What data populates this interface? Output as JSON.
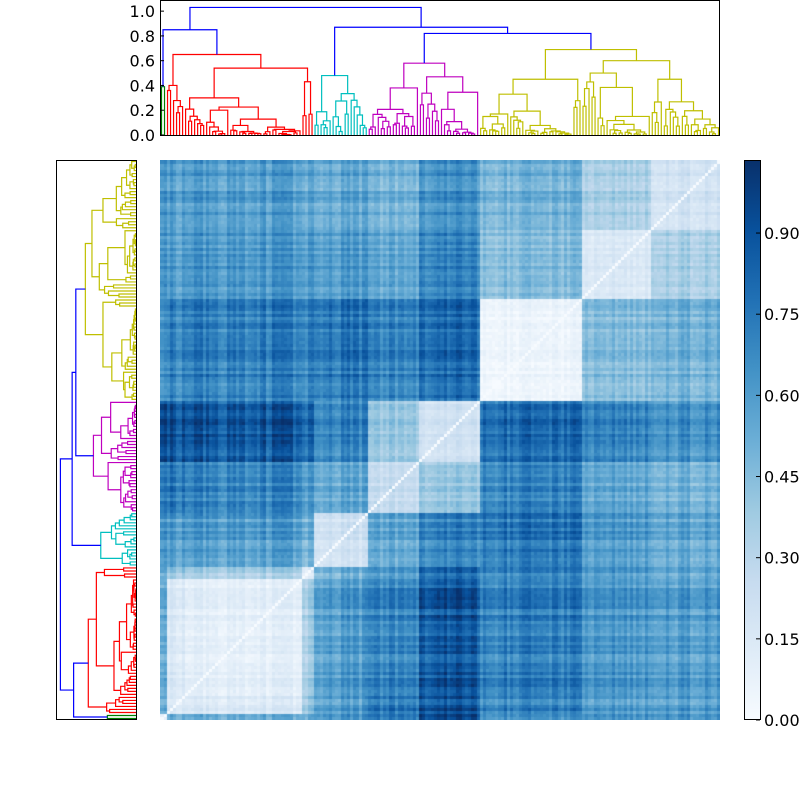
{
  "chart_data": {
    "type": "heatmap",
    "description_kind": "clustered distance matrix with row and column dendrograms",
    "colormap": "Blues",
    "value_range": [
      0.0,
      1.035
    ],
    "colorbar_ticks": [
      "0.00",
      "0.15",
      "0.30",
      "0.45",
      "0.60",
      "0.75",
      "0.90"
    ],
    "dendrogram_axis_ticks": [
      "0.0",
      "0.2",
      "0.4",
      "0.6",
      "0.8",
      "1.0"
    ],
    "dendrogram_axis_range": [
      0.0,
      1.09
    ],
    "colors": {
      "above_threshold": "#0000ff",
      "green": "#008000",
      "red": "#ff0000",
      "cyan": "#00bfbf",
      "magenta": "#bf00bf",
      "yellow": "#bfbf00"
    },
    "cluster_order": [
      "G",
      "Ra",
      "Rb",
      "Rc",
      "C",
      "M1",
      "M2",
      "Y1",
      "Y2",
      "Y3"
    ],
    "tree": {
      "height": 1.03,
      "color": "#0000ff",
      "children": [
        {
          "height": 0.85,
          "color": "#0000ff",
          "children": [
            {
              "cluster": 0,
              "size": 2,
              "height": 0.39,
              "color": "#008000"
            },
            {
              "height": 0.65,
              "color": "#ff0000",
              "children": [
                {
                  "cluster": 1,
                  "size": 6,
                  "height": 0.4,
                  "color": "#ff0000"
                },
                {
                  "height": 0.54,
                  "color": "#ff0000",
                  "children": [
                    {
                      "cluster": 2,
                      "size": 39,
                      "height": 0.3,
                      "color": "#ff0000"
                    },
                    {
                      "cluster": 3,
                      "size": 4,
                      "height": 0.43,
                      "color": "#ff0000"
                    }
                  ]
                }
              ]
            }
          ]
        },
        {
          "height": 0.87,
          "color": "#0000ff",
          "children": [
            {
              "cluster": 4,
              "size": 18,
              "height": 0.48,
              "color": "#00bfbf"
            },
            {
              "height": 0.82,
              "color": "#0000ff",
              "children": [
                {
                  "height": 0.58,
                  "color": "#bf00bf",
                  "children": [
                    {
                      "cluster": 5,
                      "size": 17,
                      "height": 0.38,
                      "color": "#bf00bf"
                    },
                    {
                      "cluster": 6,
                      "size": 20,
                      "height": 0.47,
                      "color": "#bf00bf"
                    }
                  ]
                },
                {
                  "height": 0.69,
                  "color": "#bfbf00",
                  "children": [
                    {
                      "cluster": 7,
                      "size": 34,
                      "height": 0.45,
                      "color": "#bfbf00"
                    },
                    {
                      "height": 0.6,
                      "color": "#bfbf00",
                      "children": [
                        {
                          "cluster": 8,
                          "size": 23,
                          "height": 0.5,
                          "color": "#bfbf00"
                        },
                        {
                          "cluster": 9,
                          "size": 23,
                          "height": 0.45,
                          "color": "#bfbf00"
                        }
                      ]
                    }
                  ]
                }
              ]
            }
          ]
        }
      ]
    },
    "block_mean_distance": [
      [
        0.05,
        0.5,
        0.5,
        0.5,
        0.6,
        0.7,
        0.9,
        0.6,
        0.6,
        0.6
      ],
      [
        0.5,
        0.15,
        0.15,
        0.4,
        0.6,
        0.75,
        0.9,
        0.7,
        0.6,
        0.6
      ],
      [
        0.5,
        0.15,
        0.1,
        0.35,
        0.6,
        0.7,
        0.88,
        0.72,
        0.62,
        0.6
      ],
      [
        0.5,
        0.4,
        0.35,
        0.1,
        0.5,
        0.6,
        0.8,
        0.7,
        0.6,
        0.55
      ],
      [
        0.6,
        0.6,
        0.6,
        0.5,
        0.2,
        0.55,
        0.7,
        0.75,
        0.6,
        0.55
      ],
      [
        0.7,
        0.75,
        0.7,
        0.6,
        0.55,
        0.25,
        0.4,
        0.7,
        0.55,
        0.5
      ],
      [
        0.9,
        0.9,
        0.88,
        0.8,
        0.7,
        0.4,
        0.2,
        0.8,
        0.7,
        0.65
      ],
      [
        0.6,
        0.7,
        0.72,
        0.7,
        0.75,
        0.7,
        0.8,
        0.05,
        0.45,
        0.5
      ],
      [
        0.6,
        0.6,
        0.62,
        0.6,
        0.6,
        0.55,
        0.7,
        0.45,
        0.15,
        0.35
      ],
      [
        0.6,
        0.6,
        0.6,
        0.55,
        0.55,
        0.5,
        0.65,
        0.5,
        0.35,
        0.2
      ]
    ]
  }
}
